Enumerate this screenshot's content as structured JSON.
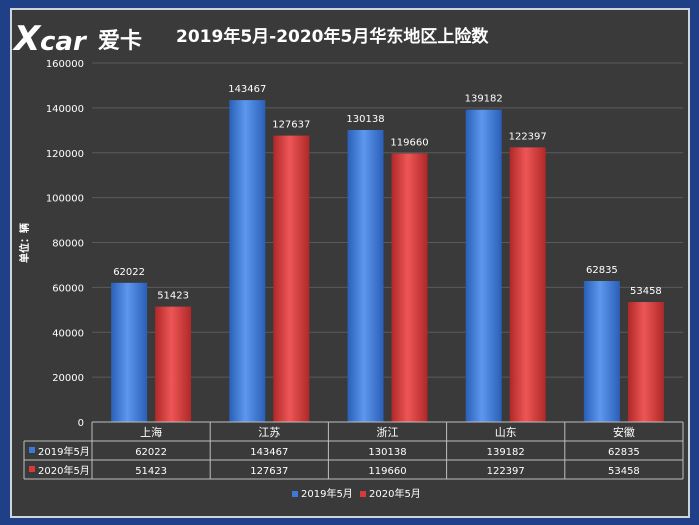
{
  "brand": {
    "logo_x": "X",
    "logo_rest": "car",
    "logo_cn": "爱卡"
  },
  "colors": {
    "series_2019": "#3b78d8",
    "series_2020": "#d63a3a",
    "background": "#3a3a3a",
    "frame": "#1f3f86"
  },
  "chart_data": {
    "type": "bar",
    "title": "2019年5月-2020年5月华东地区上险数",
    "ylabel": "单位：辆",
    "categories": [
      "上海",
      "江苏",
      "浙江",
      "山东",
      "安徽"
    ],
    "series": [
      {
        "name": "2019年5月",
        "values": [
          62022,
          143467,
          130138,
          139182,
          62835
        ]
      },
      {
        "name": "2020年5月",
        "values": [
          51423,
          127637,
          119660,
          122397,
          53458
        ]
      }
    ],
    "ylim": [
      0,
      160000
    ],
    "yticks": [
      0,
      20000,
      40000,
      60000,
      80000,
      100000,
      120000,
      140000,
      160000
    ],
    "grid": true,
    "legend": "bottom",
    "data_table": true
  }
}
